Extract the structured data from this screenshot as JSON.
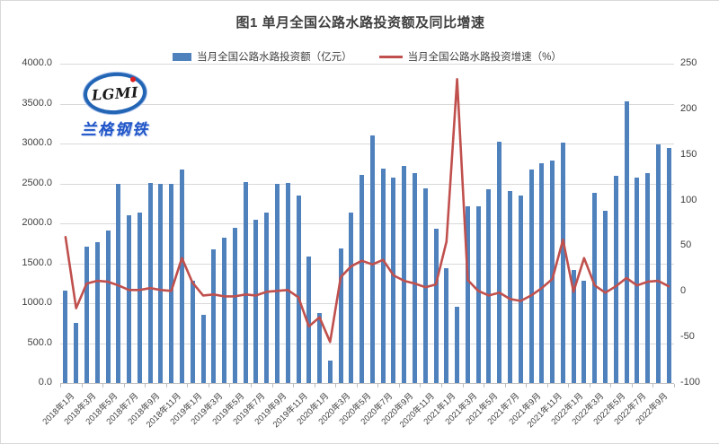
{
  "title": "图1 单月全国公路水路投资额及同比增速",
  "logo": {
    "brand": "LGMI",
    "company": "兰格钢铁"
  },
  "legend": {
    "bar_label": "当月全国公路水路投资额（亿元）",
    "line_label": "当月全国公路水路投资增速（%）"
  },
  "colors": {
    "bar": "#4F81BD",
    "line": "#C0504D",
    "grid": "#D9D9D9",
    "axis_text": "#404040",
    "title_text": "#3F3F3F",
    "logo_blue": "#2156C9",
    "logo_red": "#E02020"
  },
  "chart_data": {
    "type": "combo_bar_line",
    "title": "图1 单月全国公路水路投资额及同比增速",
    "grid": true,
    "legend_position": "top",
    "categories": [
      "2018年1月",
      "2018年2月",
      "2018年3月",
      "2018年4月",
      "2018年5月",
      "2018年6月",
      "2018年7月",
      "2018年8月",
      "2018年9月",
      "2018年10月",
      "2018年11月",
      "2018年12月",
      "2019年1月",
      "2019年2月",
      "2019年3月",
      "2019年4月",
      "2019年5月",
      "2019年6月",
      "2019年7月",
      "2019年8月",
      "2019年9月",
      "2019年10月",
      "2019年11月",
      "2019年12月",
      "2020年1月",
      "2020年2月",
      "2020年3月",
      "2020年4月",
      "2020年5月",
      "2020年6月",
      "2020年7月",
      "2020年8月",
      "2020年9月",
      "2020年10月",
      "2020年11月",
      "2020年12月",
      "2021年1月",
      "2021年2月",
      "2021年3月",
      "2021年4月",
      "2021年5月",
      "2021年6月",
      "2021年7月",
      "2021年8月",
      "2021年9月",
      "2021年10月",
      "2021年11月",
      "2021年12月",
      "2022年1月",
      "2022年2月",
      "2022年3月",
      "2022年4月",
      "2022年5月",
      "2022年6月",
      "2022年7月",
      "2022年8月",
      "2022年9月",
      "2022年10月"
    ],
    "series": [
      {
        "name": "当月全国公路水路投资额（亿元）",
        "type": "bar",
        "axis": "left",
        "color": "#4F81BD",
        "values": [
          1160,
          750,
          1710,
          1760,
          1910,
          2490,
          2100,
          2130,
          2510,
          2500,
          2490,
          2680,
          1280,
          850,
          1680,
          1820,
          1950,
          2520,
          2040,
          2130,
          2500,
          2510,
          2350,
          1590,
          880,
          280,
          1690,
          2130,
          2610,
          3100,
          2690,
          2570,
          2720,
          2630,
          2440,
          1930,
          1440,
          950,
          2210,
          2210,
          2430,
          3020,
          2400,
          2350,
          2670,
          2750,
          2790,
          3010,
          1420,
          1280,
          2380,
          2160,
          2600,
          3530,
          2570,
          2630,
          2990,
          2940
        ]
      },
      {
        "name": "当月全国公路水路投资增速（%）",
        "type": "line",
        "axis": "right",
        "color": "#C0504D",
        "values": [
          60,
          -18,
          9,
          12,
          11,
          7,
          2,
          2,
          4,
          2,
          1,
          37,
          10,
          -4,
          -3,
          -5,
          -5,
          -3,
          -4,
          0,
          1,
          2,
          -6,
          -38,
          -28,
          -55,
          16,
          28,
          34,
          30,
          35,
          18,
          12,
          9,
          5,
          8,
          55,
          233,
          13,
          1,
          -4,
          -1,
          -8,
          -10,
          -4,
          4,
          14,
          57,
          0,
          37,
          7,
          -1,
          6,
          15,
          7,
          11,
          12,
          6
        ]
      }
    ],
    "left_axis": {
      "min": 0,
      "max": 4000,
      "tick_labels": [
        "4000.0",
        "3500.0",
        "3000.0",
        "2500.0",
        "2000.0",
        "1500.0",
        "1000.0",
        "500.0",
        "0.0"
      ]
    },
    "right_axis": {
      "min": -100,
      "max": 250,
      "tick_labels": [
        "250",
        "200",
        "150",
        "100",
        "50",
        "0",
        "-50",
        "-100"
      ]
    },
    "x_tick_labels": [
      "2018年1月",
      "2018年3月",
      "2018年5月",
      "2018年7月",
      "2018年9月",
      "2018年11月",
      "2019年1月",
      "2019年3月",
      "2019年5月",
      "2019年7月",
      "2019年9月",
      "2019年11月",
      "2020年1月",
      "2020年3月",
      "2020年5月",
      "2020年7月",
      "2020年9月",
      "2020年11月",
      "2021年1月",
      "2021年3月",
      "2021年5月",
      "2021年7月",
      "2021年9月",
      "2021年11月",
      "2022年1月",
      "2022年3月",
      "2022年5月",
      "2022年7月",
      "2022年9月"
    ]
  }
}
